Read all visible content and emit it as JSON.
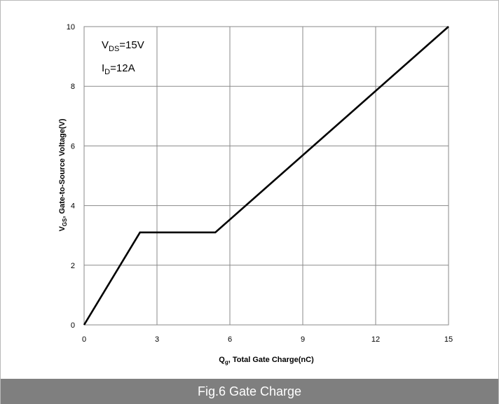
{
  "caption": "Fig.6 Gate Charge",
  "colors": {
    "caption_bar": "#7f7f7f",
    "grid": "#8a8a8a",
    "line": "#000000",
    "frame": "#b9b9b9"
  },
  "chart_data": {
    "type": "line",
    "title": "",
    "xlabel": {
      "main": "Q",
      "sub": "g",
      "rest": ", Total Gate Charge(nC)"
    },
    "ylabel": {
      "main": "V",
      "sub": "GS",
      "rest": ", Gate-to-Source Voltage(V)"
    },
    "xlim": [
      0,
      15
    ],
    "ylim": [
      0,
      10
    ],
    "xticks": [
      0,
      3,
      6,
      9,
      12,
      15
    ],
    "yticks": [
      0,
      2,
      4,
      6,
      8,
      10
    ],
    "grid": true,
    "annotations": [
      {
        "main": "V",
        "sub": "DS",
        "rest": "=15V"
      },
      {
        "main": "I",
        "sub": "D",
        "rest": "=12A"
      }
    ],
    "series": [
      {
        "x": [
          0,
          2.3,
          5.4,
          15
        ],
        "y": [
          0,
          3.1,
          3.1,
          10
        ]
      }
    ]
  }
}
